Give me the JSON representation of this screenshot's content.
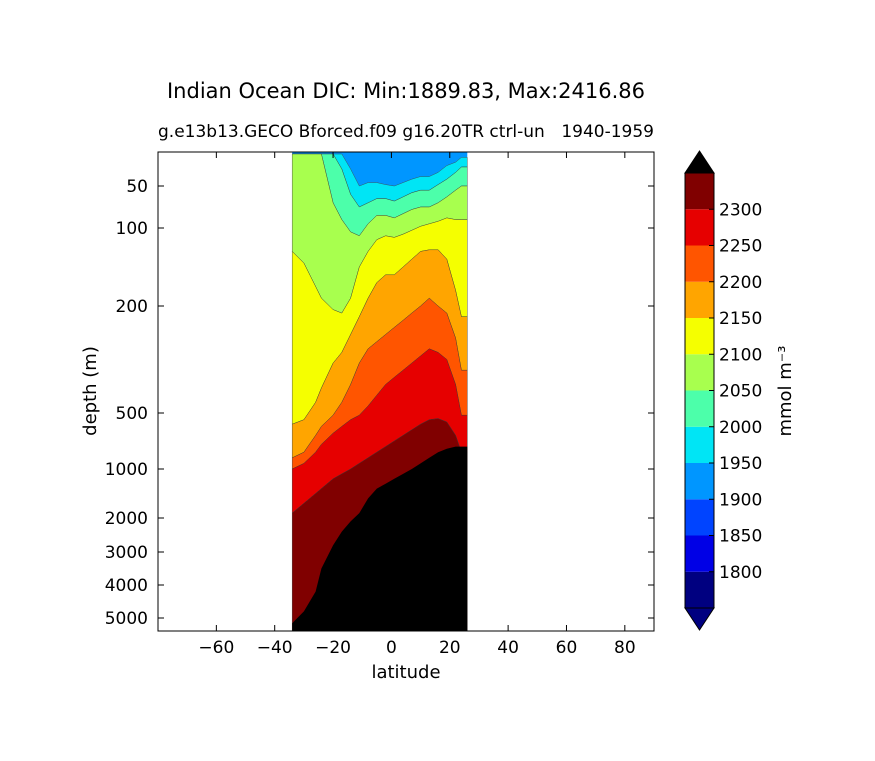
{
  "chart_data": {
    "type": "contourf",
    "title": "Indian Ocean DIC: Min:1889.83, Max:2416.86",
    "subtitle_left": "g.e13b13.GECO Bforced.f09 g16.20TR ctrl-un",
    "subtitle_right": "1940-1959",
    "xlabel": "latitude",
    "ylabel": "depth (m)",
    "xlim": [
      -80,
      90
    ],
    "x_ticks": [
      -60,
      -40,
      -20,
      0,
      20,
      40,
      60,
      80
    ],
    "x_tick_labels": [
      "−60",
      "−40",
      "−20",
      "0",
      "20",
      "40",
      "60",
      "80"
    ],
    "y_ticks": [
      50,
      100,
      200,
      500,
      1000,
      2000,
      3000,
      4000,
      5000
    ],
    "y_tick_labels": [
      "50",
      "100",
      "200",
      "500",
      "1000",
      "2000",
      "3000",
      "4000",
      "5000"
    ],
    "y_inverted": true,
    "data_lat_range": [
      -34,
      26
    ],
    "land_color": "#000000",
    "colorbar": {
      "label": "mmol m⁻³",
      "extend": "both",
      "levels": [
        1750,
        1800,
        1850,
        1900,
        1950,
        2000,
        2050,
        2100,
        2150,
        2200,
        2250,
        2300,
        2350
      ],
      "tick_values": [
        1800,
        1850,
        1900,
        1950,
        2000,
        2050,
        2100,
        2150,
        2200,
        2250,
        2300
      ],
      "tick_labels": [
        "1800",
        "1850",
        "1900",
        "1950",
        "2000",
        "2050",
        "2100",
        "2150",
        "2200",
        "2250",
        "2300"
      ],
      "colors": [
        "#000080",
        "#0000e6",
        "#0044ff",
        "#0096ff",
        "#00e5f5",
        "#4cffaa",
        "#a8ff4e",
        "#f5ff00",
        "#ffa500",
        "#ff5500",
        "#e60000",
        "#800000"
      ],
      "under_color": "#000080",
      "over_color": "#000000"
    },
    "profiles_by_latitude": {
      "band_colors": [
        "#0096ff",
        "#00e5f5",
        "#4cffaa",
        "#a8ff4e",
        "#f5ff00",
        "#ffa500",
        "#ff5500",
        "#e60000",
        "#800000"
      ],
      "rows": [
        {
          "lat": -34,
          "depths": [
            3,
            3,
            3,
            130,
            600,
            900,
            1000,
            1900
          ],
          "bottom": 5200
        },
        {
          "lat": -30,
          "depths": [
            3,
            3,
            3,
            145,
            560,
            850,
            950,
            1700
          ],
          "bottom": 4800
        },
        {
          "lat": -26,
          "depths": [
            3,
            3,
            3,
            175,
            470,
            700,
            850,
            1500
          ],
          "bottom": 4200
        },
        {
          "lat": -24,
          "depths": [
            3,
            3,
            3,
            190,
            430,
            620,
            780,
            1400
          ],
          "bottom": 3500
        },
        {
          "lat": -20,
          "depths": [
            3,
            3,
            70,
            210,
            360,
            520,
            680,
            1200
          ],
          "bottom": 2800
        },
        {
          "lat": -17,
          "depths": [
            3,
            25,
            90,
            220,
            330,
            470,
            620,
            1100
          ],
          "bottom": 2400
        },
        {
          "lat": -14,
          "depths": [
            25,
            60,
            105,
            190,
            280,
            420,
            560,
            1000
          ],
          "bottom": 2100
        },
        {
          "lat": -11,
          "depths": [
            50,
            75,
            110,
            150,
            230,
            360,
            520,
            950
          ],
          "bottom": 1900
        },
        {
          "lat": -8,
          "depths": [
            45,
            70,
            95,
            130,
            190,
            320,
            480,
            900
          ],
          "bottom": 1600
        },
        {
          "lat": -5,
          "depths": [
            45,
            65,
            85,
            115,
            170,
            300,
            450,
            850
          ],
          "bottom": 1400
        },
        {
          "lat": -2,
          "depths": [
            48,
            65,
            85,
            110,
            160,
            280,
            420,
            800
          ],
          "bottom": 1300
        },
        {
          "lat": 1,
          "depths": [
            50,
            68,
            88,
            112,
            160,
            260,
            400,
            750
          ],
          "bottom": 1200
        },
        {
          "lat": 4,
          "depths": [
            45,
            63,
            83,
            108,
            150,
            240,
            380,
            700
          ],
          "bottom": 1100
        },
        {
          "lat": 7,
          "depths": [
            40,
            58,
            78,
            103,
            140,
            220,
            360,
            650
          ],
          "bottom": 1000
        },
        {
          "lat": 10,
          "depths": [
            36,
            55,
            75,
            98,
            130,
            200,
            340,
            600
          ],
          "bottom": 950
        },
        {
          "lat": 13,
          "depths": [
            36,
            55,
            75,
            95,
            128,
            190,
            320,
            560
          ],
          "bottom": 900
        },
        {
          "lat": 16,
          "depths": [
            30,
            48,
            70,
            92,
            128,
            200,
            330,
            550
          ],
          "bottom": 850
        },
        {
          "lat": 19,
          "depths": [
            20,
            40,
            63,
            88,
            140,
            220,
            350,
            580
          ],
          "bottom": 820
        },
        {
          "lat": 22,
          "depths": [
            15,
            30,
            55,
            90,
            180,
            290,
            420,
            700
          ],
          "bottom": 800
        },
        {
          "lat": 24,
          "depths": [
            8,
            22,
            50,
            90,
            230,
            380,
            520,
            850
          ],
          "bottom": 800
        },
        {
          "lat": 26,
          "depths": [
            8,
            22,
            50,
            90,
            230,
            380,
            520,
            850
          ],
          "bottom": 800
        }
      ]
    }
  }
}
